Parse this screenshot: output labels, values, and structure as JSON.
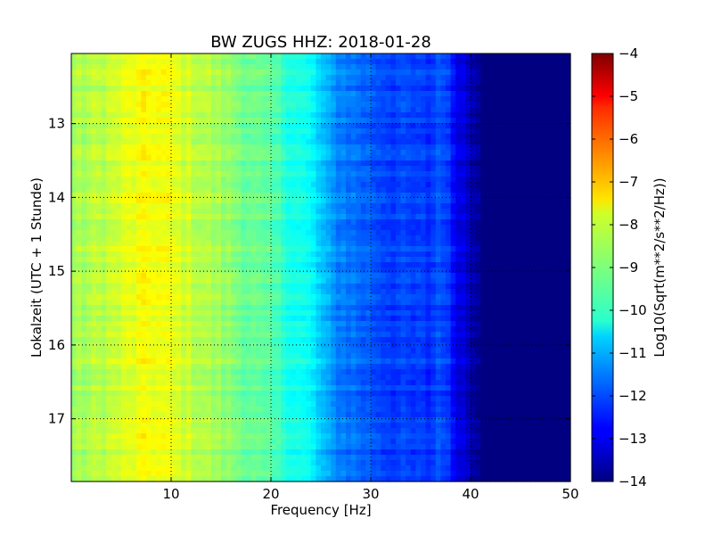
{
  "chart_data": {
    "type": "heatmap",
    "title": "BW ZUGS HHZ: 2018-01-28",
    "xlabel": "Frequency [Hz]",
    "ylabel": "Lokalzeit (UTC + 1 Stunde)",
    "xlim": [
      0,
      50
    ],
    "ylim": [
      12.05,
      17.85
    ],
    "y_inverted": true,
    "x_ticks": [
      10,
      20,
      30,
      40,
      50
    ],
    "y_ticks": [
      13,
      14,
      15,
      16,
      17
    ],
    "grid": true,
    "colormap": "jet",
    "colorbar": {
      "label": "Log10(Sqrt(m**2/s**2/Hz))",
      "range": [
        -14,
        -4
      ],
      "ticks": [
        -14,
        -13,
        -12,
        -11,
        -10,
        -9,
        -8,
        -7,
        -6,
        -5,
        -4
      ]
    },
    "frequency_profile": {
      "x": [
        0,
        2,
        4,
        6,
        8,
        10,
        12,
        14,
        16,
        18,
        20,
        22,
        24,
        25,
        26,
        28,
        30,
        32,
        34,
        36,
        37,
        38,
        39,
        40,
        41,
        42,
        44,
        46,
        48,
        50
      ],
      "values": [
        -8.7,
        -8.5,
        -8.3,
        -8.0,
        -7.8,
        -8.0,
        -8.3,
        -8.6,
        -8.9,
        -9.2,
        -9.5,
        -9.9,
        -10.3,
        -10.8,
        -11.3,
        -11.6,
        -11.9,
        -12.1,
        -12.2,
        -12.3,
        -11.8,
        -12.5,
        -13.0,
        -13.4,
        -13.7,
        -13.9,
        -14.0,
        -14.0,
        -14.0,
        -14.0
      ]
    }
  }
}
